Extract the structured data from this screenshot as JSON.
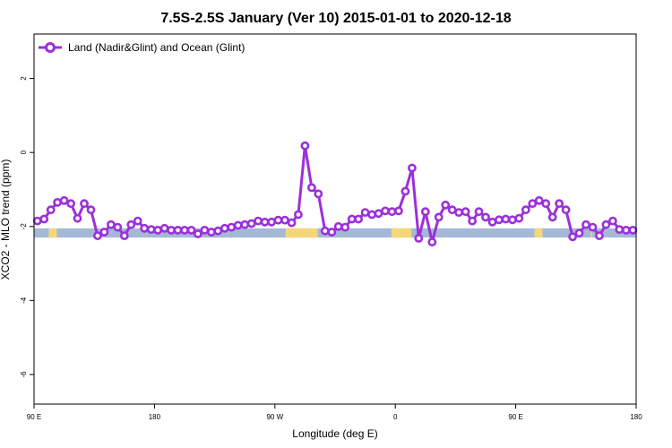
{
  "chart_data": {
    "type": "line",
    "title": "7.5S-2.5S January (Ver 10)   2015-01-01 to 2020-12-18",
    "xlabel": "Longitude (deg E)",
    "ylabel": "XCO2 - MLO trend (ppm)",
    "xlim": [
      90,
      540
    ],
    "ylim": [
      -6.8,
      3.2
    ],
    "x_ticks": [
      {
        "value": 90,
        "label": "90 E"
      },
      {
        "value": 180,
        "label": "180"
      },
      {
        "value": 270,
        "label": "90 W"
      },
      {
        "value": 360,
        "label": "0"
      },
      {
        "value": 450,
        "label": "90 E"
      },
      {
        "value": 540,
        "label": "180"
      }
    ],
    "y_ticks": [
      {
        "value": 2,
        "label": "2"
      },
      {
        "value": 0,
        "label": "0"
      },
      {
        "value": -2,
        "label": "-2"
      },
      {
        "value": -4,
        "label": "-4"
      },
      {
        "value": -6,
        "label": "-6"
      }
    ],
    "legend": {
      "position": "top-left",
      "entries": [
        {
          "name": "Land (Nadir&Glint) and Ocean (Glint)",
          "color": "#9b30d9"
        }
      ]
    },
    "grid": false,
    "surface_band": {
      "y_range": [
        -2.3,
        -2.05
      ],
      "ocean_color": "#a5b8d6",
      "land_color": "#f5d77a",
      "land_segments": [
        [
          101,
          107
        ],
        [
          278,
          302
        ],
        [
          357,
          372
        ],
        [
          464,
          470
        ],
        [
          506,
          507
        ]
      ]
    },
    "series": [
      {
        "name": "Land (Nadir&Glint) and Ocean (Glint)",
        "color": "#9b30d9",
        "segments": [
          {
            "x": [
              92.5,
              97.5,
              102.5,
              107.5,
              112.5,
              117.5,
              122.5,
              127.5,
              132.5,
              137.5,
              142.5,
              147.5,
              152.5,
              157.5,
              162.5,
              167.5,
              172.5,
              177.5,
              182.5,
              187.5,
              192.5,
              197.5,
              202.5,
              207.5,
              212.5,
              217.5,
              222.5,
              227.5,
              232.5,
              237.5,
              242.5,
              247.5,
              252.5,
              257.5,
              262.5,
              267.5,
              272.5,
              277.5
            ],
            "y": [
              -1.85,
              -1.8,
              -1.55,
              -1.35,
              -1.3,
              -1.38,
              -1.78,
              -1.38,
              -1.55,
              -2.25,
              -2.15,
              -1.95,
              -2.02,
              -2.25,
              -1.95,
              -1.85,
              -2.05,
              -2.08,
              -2.1,
              -2.05,
              -2.1,
              -2.1,
              -2.1,
              -2.1,
              -2.2,
              -2.1,
              -2.15,
              -2.12,
              -2.05,
              -2.02,
              -1.97,
              -1.95,
              -1.92,
              -1.85,
              -1.88,
              -1.88,
              -1.83,
              -1.83
            ]
          },
          {
            "x": [
              282.5,
              287.5,
              292.5,
              297.5,
              302.5,
              307.5,
              312.5,
              317.5,
              322.5,
              327.5,
              332.5,
              337.5,
              342.5,
              347.5,
              352.5,
              357.5,
              362.5,
              367.5,
              372.5,
              377.5,
              382.5,
              387.5,
              392.5,
              397.5,
              402.5,
              407.5,
              412.5,
              417.5,
              422.5,
              427.5,
              432.5,
              437.5,
              442.5,
              447.5,
              452.5,
              457.5,
              462.5,
              467.5,
              472.5,
              477.5,
              482.5,
              487.5,
              492.5,
              497.5,
              502.5,
              507.5,
              512.5,
              517.5,
              522.5,
              527.5,
              532.5,
              537.5
            ],
            "y": [
              -1.9,
              -1.68,
              0.18,
              -0.95,
              -1.12,
              -2.12,
              -2.15,
              -2.0,
              -2.02,
              -1.8,
              -1.8,
              -1.62,
              -1.68,
              -1.65,
              -1.58,
              -1.6,
              -1.58,
              -1.05,
              -0.42,
              -2.32,
              -1.6,
              -2.42,
              -1.75,
              -1.42,
              -1.55,
              -1.62,
              -1.6,
              -1.85,
              -1.6,
              -1.75,
              -1.88,
              -1.82,
              -1.8,
              -1.82,
              -1.78,
              -1.55,
              -1.38,
              -1.3,
              -1.38,
              -1.75,
              -1.38,
              -1.55,
              -2.28,
              -2.18,
              -1.95,
              -2.02,
              -2.25,
              -1.95,
              -1.85,
              -2.08,
              -2.1,
              -2.1
            ]
          }
        ]
      }
    ]
  }
}
